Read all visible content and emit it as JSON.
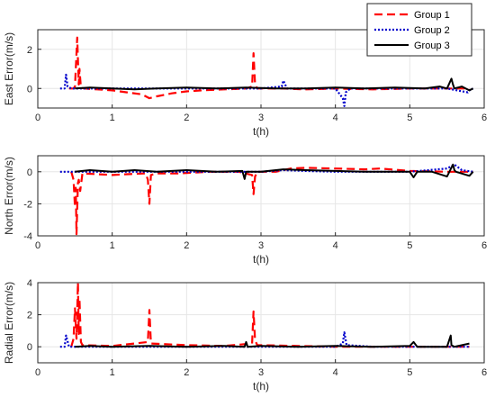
{
  "colors": {
    "group1": "#ff0000",
    "group2": "#0000cc",
    "group3": "#000000",
    "grid": "#e6e6e6",
    "axis": "#262626"
  },
  "chart_data": [
    {
      "type": "line",
      "title": "",
      "xlabel": "t(h)",
      "ylabel": "East Error(m/s)",
      "xlim": [
        0,
        6
      ],
      "ylim": [
        -1,
        3
      ],
      "xticks": [
        0,
        1,
        2,
        3,
        4,
        5,
        6
      ],
      "yticks": [
        -2,
        0,
        2
      ],
      "grid": true,
      "legend": "top-right",
      "series": [
        {
          "name": "Group 1",
          "style": "dashed",
          "x": [
            0.42,
            0.48,
            0.5,
            0.53,
            0.55,
            0.56,
            0.58,
            0.62,
            0.8,
            1.0,
            1.2,
            1.4,
            1.5,
            1.6,
            1.8,
            2.0,
            2.2,
            2.5,
            2.8,
            2.88,
            2.9,
            2.92,
            2.95,
            3.1,
            3.3,
            3.6,
            4.0,
            4.5,
            5.0,
            5.5,
            5.8
          ],
          "y": [
            0,
            0,
            0.1,
            2.6,
            0.2,
            1.0,
            0.05,
            0,
            -0.05,
            -0.1,
            -0.2,
            -0.3,
            -0.5,
            -0.4,
            -0.25,
            -0.15,
            -0.1,
            -0.05,
            0,
            0.1,
            1.8,
            0.2,
            0,
            0,
            0,
            -0.05,
            0,
            -0.05,
            0,
            0,
            0
          ]
        },
        {
          "name": "Group 2",
          "style": "dotted",
          "x": [
            0.3,
            0.36,
            0.38,
            0.4,
            0.45,
            0.6,
            1.0,
            1.5,
            2.0,
            2.5,
            3.0,
            3.28,
            3.3,
            3.35,
            3.6,
            4.0,
            4.1,
            4.12,
            4.14,
            4.2,
            4.6,
            5.0,
            5.5,
            5.78,
            5.8,
            5.85
          ],
          "y": [
            0,
            0,
            0.7,
            0.1,
            0,
            0,
            0,
            0,
            0,
            0,
            0,
            0.1,
            0.4,
            0,
            0,
            0,
            -0.5,
            -0.9,
            -0.2,
            0,
            0,
            0,
            0,
            -0.2,
            -0.1,
            0
          ]
        },
        {
          "name": "Group 3",
          "style": "solid",
          "x": [
            0.5,
            0.7,
            1.0,
            1.3,
            1.6,
            2.0,
            2.4,
            2.8,
            3.2,
            3.6,
            4.0,
            4.4,
            4.8,
            5.2,
            5.4,
            5.5,
            5.56,
            5.58,
            5.6,
            5.7,
            5.8,
            5.85
          ],
          "y": [
            0,
            0.05,
            0,
            -0.05,
            0,
            0.05,
            0,
            0.05,
            0,
            0,
            0.05,
            0,
            0.05,
            0,
            0.1,
            0,
            0.5,
            0.2,
            0,
            0.1,
            -0.1,
            0
          ]
        }
      ]
    },
    {
      "type": "line",
      "title": "",
      "xlabel": "t(h)",
      "ylabel": "North Error(m/s)",
      "xlim": [
        0,
        6
      ],
      "ylim": [
        -4,
        1
      ],
      "xticks": [
        0,
        1,
        2,
        3,
        4,
        5,
        6
      ],
      "yticks": [
        -4,
        -2,
        0
      ],
      "grid": true,
      "series": [
        {
          "name": "Group 1",
          "style": "dashed",
          "x": [
            0.45,
            0.48,
            0.5,
            0.51,
            0.52,
            0.54,
            0.55,
            0.57,
            0.6,
            0.8,
            1.0,
            1.2,
            1.45,
            1.48,
            1.5,
            1.52,
            1.6,
            1.9,
            2.3,
            2.7,
            2.88,
            2.9,
            2.92,
            2.95,
            3.2,
            3.4,
            3.6,
            4.0,
            4.4,
            4.6,
            5.0,
            5.5,
            5.85
          ],
          "y": [
            0,
            -0.5,
            -2.2,
            -1.0,
            -3.9,
            -0.7,
            -0.5,
            -1.2,
            -0.1,
            -0.15,
            -0.2,
            -0.15,
            -0.1,
            -0.5,
            -2.0,
            -0.2,
            -0.1,
            -0.1,
            0,
            0,
            -0.2,
            -1.4,
            -0.3,
            0,
            0,
            0.2,
            0.25,
            0.2,
            0.15,
            0.2,
            0.05,
            0,
            0
          ]
        },
        {
          "name": "Group 2",
          "style": "dotted",
          "x": [
            0.3,
            0.6,
            1.0,
            1.5,
            2.0,
            2.5,
            3.0,
            3.3,
            3.6,
            4.0,
            4.5,
            5.0,
            5.5,
            5.6,
            5.7,
            5.85
          ],
          "y": [
            0,
            0,
            0,
            0,
            0,
            0,
            0,
            0.1,
            0.05,
            0,
            0,
            0,
            0.2,
            0.45,
            0.1,
            0
          ]
        },
        {
          "name": "Group 3",
          "style": "solid",
          "x": [
            0.5,
            0.7,
            1.0,
            1.3,
            1.6,
            2.0,
            2.4,
            2.75,
            2.78,
            2.8,
            3.0,
            3.3,
            3.6,
            4.0,
            4.4,
            4.8,
            5.0,
            5.05,
            5.1,
            5.3,
            5.5,
            5.58,
            5.6,
            5.62,
            5.8,
            5.85
          ],
          "y": [
            0,
            0.1,
            0,
            0.1,
            0,
            0.1,
            0,
            0.05,
            -0.45,
            0,
            0,
            0.15,
            0.1,
            0.05,
            0,
            0,
            0,
            -0.35,
            0,
            0,
            -0.3,
            0.45,
            0.1,
            0,
            -0.25,
            0
          ]
        }
      ]
    },
    {
      "type": "line",
      "title": "",
      "xlabel": "t(h)",
      "ylabel": "Radial Error(m/s)",
      "xlim": [
        0,
        6
      ],
      "ylim": [
        -1,
        4
      ],
      "xticks": [
        0,
        1,
        2,
        3,
        4,
        5,
        6
      ],
      "yticks": [
        0,
        2,
        4
      ],
      "grid": true,
      "series": [
        {
          "name": "Group 1",
          "style": "dashed",
          "x": [
            0.45,
            0.48,
            0.5,
            0.52,
            0.54,
            0.55,
            0.56,
            0.58,
            0.6,
            1.0,
            1.48,
            1.5,
            1.52,
            2.0,
            2.5,
            2.88,
            2.9,
            2.92,
            2.95,
            3.5,
            4.0,
            5.0,
            5.8
          ],
          "y": [
            0,
            0.5,
            2.4,
            0.5,
            4.0,
            0.8,
            3.0,
            0.3,
            0.1,
            0.05,
            0.3,
            2.3,
            0.2,
            0.1,
            0.05,
            0.2,
            2.2,
            0.4,
            0.1,
            0.05,
            0,
            0,
            0
          ]
        },
        {
          "name": "Group 2",
          "style": "dotted",
          "x": [
            0.3,
            0.36,
            0.38,
            0.42,
            0.6,
            1.0,
            2.0,
            3.0,
            4.0,
            4.1,
            4.12,
            4.15,
            4.5,
            5.0,
            5.5,
            5.8
          ],
          "y": [
            0,
            0,
            0.7,
            0,
            0,
            0,
            0,
            0,
            0,
            0.2,
            0.9,
            0.1,
            0,
            0,
            0,
            0
          ]
        },
        {
          "name": "Group 3",
          "style": "solid",
          "x": [
            0.5,
            0.7,
            1.0,
            1.5,
            2.0,
            2.5,
            2.78,
            2.8,
            2.82,
            3.0,
            3.5,
            4.0,
            4.5,
            5.0,
            5.05,
            5.1,
            5.5,
            5.55,
            5.56,
            5.6,
            5.8
          ],
          "y": [
            0,
            0.05,
            0,
            0.05,
            0,
            0.05,
            0,
            0.3,
            0,
            0.05,
            0,
            0.05,
            0,
            0.05,
            0.3,
            0,
            0,
            0.7,
            0.1,
            0,
            0.2
          ]
        }
      ]
    }
  ]
}
